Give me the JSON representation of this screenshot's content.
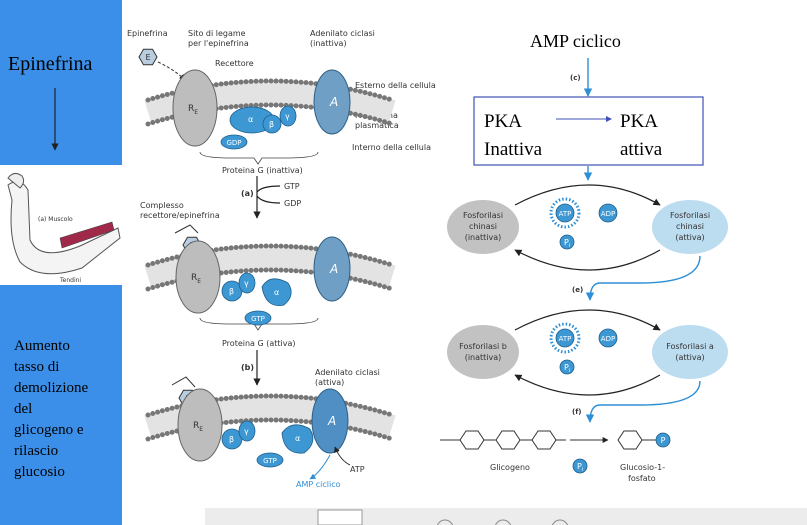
{
  "left_panel": {
    "title": "Epinefrina",
    "figure_labels": [
      "(a) Muscolo",
      "Tendini"
    ],
    "effect_lines": [
      "Aumento",
      "tasso di",
      "demolizione",
      "del",
      "glicogeno e",
      "rilascio",
      "glucosio"
    ]
  },
  "middle": {
    "labels": [
      "Epinefrina",
      "Sito di legame",
      "per l'epinefrina",
      "Adenilato ciclasi",
      "(inattiva)",
      "Recettore",
      "Esterno della cellula",
      "Membrana",
      "plasmatica",
      "Interno della cellula",
      "Proteina G (inattiva)",
      "(a)",
      "GTP",
      "GDP",
      "Complesso",
      "recettore/epinefrina",
      "Proteina G (attiva)",
      "(b)",
      "Adenilato ciclasi",
      "(attiva)",
      "ATP",
      "AMP ciclico"
    ],
    "membranes": [
      {
        "ligand": "E",
        "receptor": "R",
        "receptor_sub": "E",
        "alpha": "α",
        "beta": "β",
        "gamma": "γ",
        "cyclase": "A",
        "nucleotide": "GDP"
      },
      {
        "ligand": "E",
        "receptor": "R",
        "receptor_sub": "E",
        "alpha": "α",
        "beta": "β",
        "gamma": "γ",
        "cyclase": "A",
        "nucleotide": "GTP"
      },
      {
        "ligand": "E",
        "receptor": "R",
        "receptor_sub": "E",
        "alpha": "α",
        "beta": "β",
        "gamma": "γ",
        "cyclase": "A",
        "nucleotide": "GTP"
      }
    ]
  },
  "right": {
    "labels": [
      "AMP ciclico",
      "(c)",
      "PKA",
      "Inattiva",
      "PKA",
      "attiva",
      "(e)",
      "(f)",
      "Glicogeno",
      "Glucosio-1-",
      "fosfato",
      "P",
      "P",
      "i"
    ],
    "cycles": [
      {
        "left": [
          "Fosforilasi",
          "chinasi",
          "(inattiva)"
        ],
        "right": [
          "Fosforilasi",
          "chinasi",
          "(attiva)"
        ],
        "atp": "ATP",
        "adp": "ADP",
        "pi": "P",
        "pi_sub": "i"
      },
      {
        "left": [
          "Fosforilasi b",
          "(inattiva)"
        ],
        "right": [
          "Fosforilasi a",
          "(attiva)"
        ],
        "atp": "ATP",
        "adp": "ADP",
        "pi": "P",
        "pi_sub": "i"
      }
    ]
  }
}
